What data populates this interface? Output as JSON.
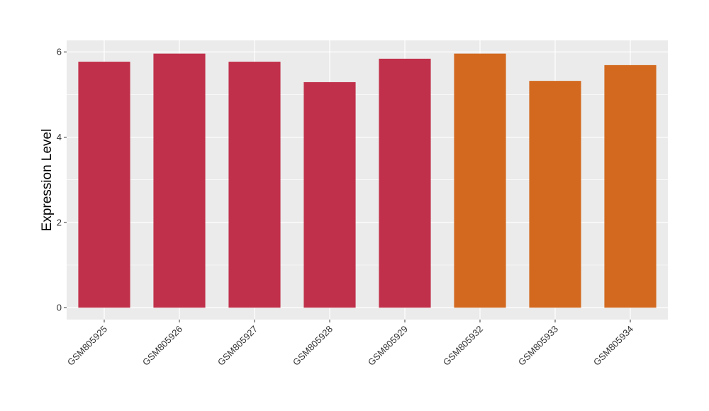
{
  "chart_data": {
    "type": "bar",
    "y_label": "Expression Level",
    "categories": [
      "GSM805925",
      "GSM805926",
      "GSM805927",
      "GSM805928",
      "GSM805929",
      "GSM805932",
      "GSM805933",
      "GSM805934"
    ],
    "values": [
      5.77,
      5.96,
      5.77,
      5.29,
      5.84,
      5.96,
      5.32,
      5.69
    ],
    "colors": [
      "#c0304a",
      "#c0304a",
      "#c0304a",
      "#c0304a",
      "#c0304a",
      "#d2691e",
      "#d2691e",
      "#d2691e"
    ],
    "ylim": [
      -0.28,
      6.27
    ],
    "yticks": [
      0,
      2,
      4,
      6
    ],
    "minor_yticks": [
      1,
      3,
      5
    ],
    "grid": true
  }
}
